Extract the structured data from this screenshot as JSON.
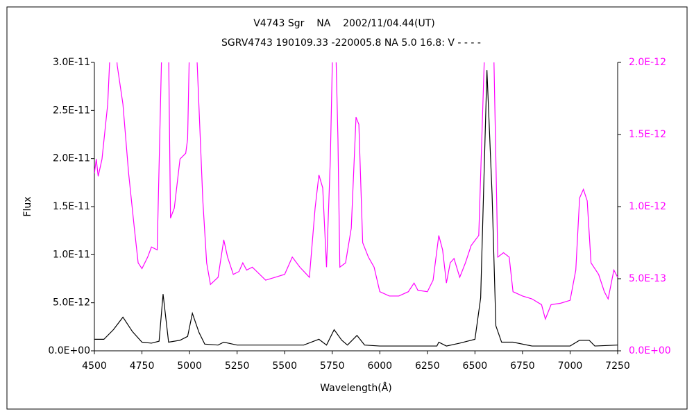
{
  "chart_data": {
    "type": "line",
    "title": "V4743 Sgr    NA    2002/11/04.44(UT)",
    "subtitle": "SGRV4743 190109.33 -220005.8 NA 5.0 16.8: V - - - -",
    "x_label": "Wavelength(Å)",
    "y_label": "Flux",
    "xlim": [
      4500,
      7250
    ],
    "xticks": [
      4500,
      4750,
      5000,
      5250,
      5500,
      5750,
      6000,
      6250,
      6500,
      6750,
      7000,
      7250
    ],
    "ylim": [
      0,
      3e-11
    ],
    "yticks": [
      {
        "value": 0,
        "label": "0.0E+00"
      },
      {
        "value": 5e-12,
        "label": "5.0E-12"
      },
      {
        "value": 1e-11,
        "label": "1.0E-11"
      },
      {
        "value": 1.5e-11,
        "label": "1.5E-11"
      },
      {
        "value": 2e-11,
        "label": "2.0E-11"
      },
      {
        "value": 2.5e-11,
        "label": "2.5E-11"
      },
      {
        "value": 3e-11,
        "label": "3.0E-11"
      }
    ],
    "y2lim": [
      0,
      2e-12
    ],
    "y2ticks": [
      {
        "value": 0,
        "label": "0.0E+00"
      },
      {
        "value": 5e-13,
        "label": "5.0E-13"
      },
      {
        "value": 1e-12,
        "label": "1.0E-12"
      },
      {
        "value": 1.5e-12,
        "label": "1.5E-12"
      },
      {
        "value": 2e-12,
        "label": "2.0E-12"
      }
    ],
    "grid": false,
    "series": [
      {
        "color": "#000000",
        "x": [
          4500,
          4550,
          4600,
          4650,
          4700,
          4750,
          4800,
          4840,
          4861,
          4890,
          4950,
          4990,
          5015,
          5050,
          5080,
          5150,
          5180,
          5250,
          5400,
          5600,
          5680,
          5720,
          5760,
          5800,
          5830,
          5880,
          5920,
          6000,
          6300,
          6310,
          6350,
          6420,
          6500,
          6530,
          6563,
          6590,
          6610,
          6640,
          6700,
          6800,
          6900,
          7000,
          7050,
          7100,
          7130,
          7250
        ],
        "values": [
          1.2e-12,
          1.2e-12,
          2.2e-12,
          3.5e-12,
          2e-12,
          9e-13,
          8e-13,
          1e-12,
          5.9e-12,
          9e-13,
          1.1e-12,
          1.5e-12,
          3.9e-12,
          1.9e-12,
          7e-13,
          6e-13,
          9e-13,
          6e-13,
          6e-13,
          6e-13,
          1.2e-12,
          6e-13,
          2.2e-12,
          1.1e-12,
          6e-13,
          1.6e-12,
          6e-13,
          5e-13,
          5e-13,
          9e-13,
          5e-13,
          8e-13,
          1.2e-12,
          5.5e-12,
          2.92e-11,
          1.63e-11,
          2.6e-12,
          9e-13,
          9e-13,
          5e-13,
          5e-13,
          5e-13,
          1.1e-12,
          1.1e-12,
          5e-13,
          6e-13
        ]
      },
      {
        "color": "#ff00ff",
        "axis": "y2",
        "x": [
          4500,
          4510,
          4520,
          4540,
          4570,
          4580,
          4600,
          4620,
          4650,
          4680,
          4710,
          4730,
          4750,
          4780,
          4800,
          4830,
          4861,
          4890,
          4900,
          4920,
          4950,
          4980,
          4990,
          5007,
          5040,
          5070,
          5090,
          5110,
          5150,
          5180,
          5200,
          5230,
          5260,
          5280,
          5300,
          5330,
          5400,
          5450,
          5500,
          5540,
          5580,
          5630,
          5660,
          5680,
          5700,
          5720,
          5740,
          5760,
          5780,
          5790,
          5820,
          5850,
          5875,
          5890,
          5910,
          5940,
          5970,
          6000,
          6050,
          6100,
          6150,
          6180,
          6200,
          6250,
          6280,
          6310,
          6330,
          6350,
          6370,
          6390,
          6420,
          6450,
          6480,
          6520,
          6563,
          6600,
          6620,
          6650,
          6680,
          6700,
          6750,
          6800,
          6850,
          6870,
          6900,
          6950,
          7000,
          7030,
          7050,
          7070,
          7090,
          7110,
          7150,
          7180,
          7200,
          7230,
          7250
        ],
        "values": [
          1.23e-12,
          1.33e-12,
          1.21e-12,
          1.33e-12,
          1.71e-12,
          2e-12,
          2.3e-12,
          1.98e-12,
          1.71e-12,
          1.23e-12,
          8.5e-13,
          6.1e-13,
          5.7e-13,
          6.5e-13,
          7.2e-13,
          7e-13,
          2.5e-12,
          2.1e-12,
          9.2e-13,
          9.9e-13,
          1.33e-12,
          1.37e-12,
          1.47e-12,
          2.6e-12,
          2e-12,
          1.04e-12,
          6.1e-13,
          4.6e-13,
          5.1e-13,
          7.7e-13,
          6.5e-13,
          5.3e-13,
          5.5e-13,
          6.1e-13,
          5.6e-13,
          5.8e-13,
          4.9e-13,
          5.1e-13,
          5.3e-13,
          6.5e-13,
          5.8e-13,
          5.1e-13,
          9.9e-13,
          1.22e-12,
          1.13e-12,
          5.8e-13,
          1.33e-12,
          2.6e-12,
          1.47e-12,
          5.8e-13,
          6.1e-13,
          8.5e-13,
          1.62e-12,
          1.57e-12,
          7.5e-13,
          6.5e-13,
          5.8e-13,
          4.1e-13,
          3.8e-13,
          3.8e-13,
          4.1e-13,
          4.7e-13,
          4.2e-13,
          4.1e-13,
          4.9e-13,
          8e-13,
          7e-13,
          4.7e-13,
          6.1e-13,
          6.4e-13,
          5.1e-13,
          6.1e-13,
          7.3e-13,
          8e-13,
          2.6e-12,
          2e-12,
          6.5e-13,
          6.8e-13,
          6.5e-13,
          4.1e-13,
          3.8e-13,
          3.6e-13,
          3.2e-13,
          2.2e-13,
          3.2e-13,
          3.3e-13,
          3.5e-13,
          5.6e-13,
          1.06e-12,
          1.12e-12,
          1.04e-12,
          6.1e-13,
          5.3e-13,
          4.1e-13,
          3.6e-13,
          5.6e-13,
          5.1e-13
        ]
      }
    ]
  }
}
